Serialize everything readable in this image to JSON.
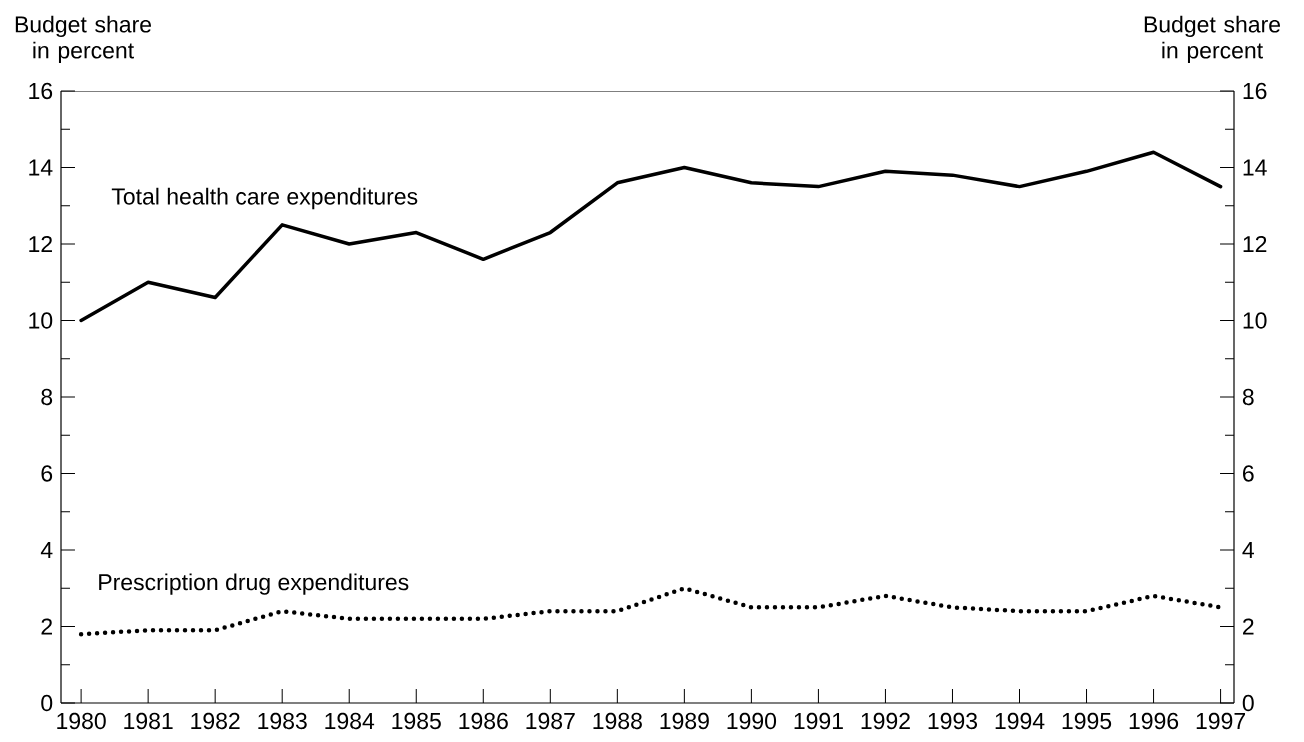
{
  "chart_data": {
    "type": "line",
    "x": [
      1980,
      1981,
      1982,
      1983,
      1984,
      1985,
      1986,
      1987,
      1988,
      1989,
      1990,
      1991,
      1992,
      1993,
      1994,
      1995,
      1996,
      1997
    ],
    "series": [
      {
        "name": "Total health care expenditures",
        "color": "#000000",
        "line_style": "solid",
        "values": [
          10.0,
          11.0,
          10.6,
          12.5,
          12.0,
          12.3,
          11.6,
          12.3,
          13.6,
          14.0,
          13.6,
          13.5,
          13.9,
          13.8,
          13.5,
          13.9,
          14.4,
          13.5
        ]
      },
      {
        "name": "Prescription drug expenditures",
        "color": "#000000",
        "line_style": "dotted",
        "values": [
          1.8,
          1.9,
          1.9,
          2.4,
          2.2,
          2.2,
          2.2,
          2.4,
          2.4,
          3.0,
          2.5,
          2.5,
          2.8,
          2.5,
          2.4,
          2.4,
          2.8,
          2.5
        ]
      }
    ],
    "xlim": [
      1979.7,
      1997.2
    ],
    "xticks": [
      1980,
      1981,
      1982,
      1983,
      1984,
      1985,
      1986,
      1987,
      1988,
      1989,
      1990,
      1991,
      1992,
      1993,
      1994,
      1995,
      1996,
      1997
    ],
    "ylim": [
      0,
      16
    ],
    "yticks": [
      0,
      {
        "value": 1,
        "label": null
      },
      2,
      {
        "value": 3,
        "label": null
      },
      4,
      {
        "value": 5,
        "label": null
      },
      6,
      {
        "value": 7,
        "label": null
      },
      8,
      {
        "value": 9,
        "label": null
      },
      10,
      {
        "value": 11,
        "label": null
      },
      12,
      {
        "value": 13,
        "label": null
      },
      14,
      {
        "value": 15,
        "label": null
      },
      16
    ],
    "y2lim": [
      0,
      16
    ],
    "y2ticks": [
      0,
      {
        "value": 1,
        "label": null
      },
      2,
      {
        "value": 3,
        "label": null
      },
      4,
      {
        "value": 5,
        "label": null
      },
      6,
      {
        "value": 7,
        "label": null
      },
      8,
      {
        "value": 9,
        "label": null
      },
      10,
      {
        "value": 11,
        "label": null
      },
      12,
      {
        "value": 13,
        "label": null
      },
      14,
      {
        "value": 15,
        "label": null
      },
      16
    ],
    "ylabel": "Budget share in percent",
    "y2label": "Budget share in percent",
    "legend": false,
    "marker": "none"
  }
}
